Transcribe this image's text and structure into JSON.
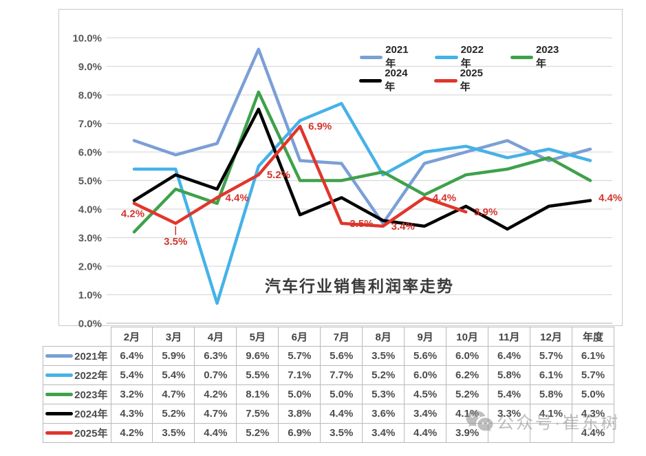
{
  "chart_data": {
    "type": "line",
    "title": "汽车行业销售利润率走势",
    "xlabel": "",
    "ylabel": "",
    "ylim": [
      0,
      10
    ],
    "ytick_step": 1,
    "y_tick_labels": [
      "10.0%",
      "9.0%",
      "8.0%",
      "7.0%",
      "6.0%",
      "5.0%",
      "4.0%",
      "3.0%",
      "2.0%",
      "1.0%",
      "0.0%"
    ],
    "grid": true,
    "legend_position": "top",
    "categories": [
      "2月",
      "3月",
      "4月",
      "5月",
      "6月",
      "7月",
      "8月",
      "9月",
      "10月",
      "11月",
      "12月",
      "年度"
    ],
    "series": [
      {
        "name": "2021年",
        "color": "#7B9FD6",
        "values": [
          6.4,
          5.9,
          6.3,
          9.6,
          5.7,
          5.6,
          3.5,
          5.6,
          6.0,
          6.4,
          5.7,
          6.1
        ]
      },
      {
        "name": "2022年",
        "color": "#45B2E8",
        "values": [
          5.4,
          5.4,
          0.7,
          5.5,
          7.1,
          7.7,
          5.2,
          6.0,
          6.2,
          5.8,
          6.1,
          5.7
        ]
      },
      {
        "name": "2023年",
        "color": "#3FA14B",
        "values": [
          3.2,
          4.7,
          4.2,
          8.1,
          5.0,
          5.0,
          5.3,
          4.5,
          5.2,
          5.4,
          5.8,
          5.0
        ]
      },
      {
        "name": "2024年",
        "color": "#000000",
        "values": [
          4.3,
          5.2,
          4.7,
          7.5,
          3.8,
          4.4,
          3.6,
          3.4,
          4.1,
          3.3,
          4.1,
          4.3
        ]
      },
      {
        "name": "2025年",
        "color": "#E0362C",
        "values": [
          4.2,
          3.5,
          4.4,
          5.2,
          6.9,
          3.5,
          3.4,
          4.4,
          3.9,
          null,
          null,
          4.4
        ]
      }
    ],
    "data_labels": [
      {
        "series": "2025年",
        "category": "2月",
        "text": "4.2%"
      },
      {
        "series": "2025年",
        "category": "3月",
        "text": "3.5%"
      },
      {
        "series": "2025年",
        "category": "4月",
        "text": "4.4%"
      },
      {
        "series": "2025年",
        "category": "5月",
        "text": "5.2%"
      },
      {
        "series": "2025年",
        "category": "6月",
        "text": "6.9%"
      },
      {
        "series": "2025年",
        "category": "7月",
        "text": "3.5%"
      },
      {
        "series": "2025年",
        "category": "8月",
        "text": "3.4%"
      },
      {
        "series": "2025年",
        "category": "9月",
        "text": "4.4%"
      },
      {
        "series": "2025年",
        "category": "10月",
        "text": "3.9%"
      },
      {
        "series": "2025年",
        "category": "年度",
        "text": "4.4%"
      }
    ],
    "data_label_color": "#D2342B"
  },
  "table": {
    "month_headers": [
      "2月",
      "3月",
      "4月",
      "5月",
      "6月",
      "7月",
      "8月",
      "9月",
      "10月",
      "11月",
      "12月",
      "年度"
    ],
    "rows": [
      {
        "label": "2021年",
        "color": "#7B9FD6",
        "cells": [
          "6.4%",
          "5.9%",
          "6.3%",
          "9.6%",
          "5.7%",
          "5.6%",
          "3.5%",
          "5.6%",
          "6.0%",
          "6.4%",
          "5.7%",
          "6.1%"
        ]
      },
      {
        "label": "2022年",
        "color": "#45B2E8",
        "cells": [
          "5.4%",
          "5.4%",
          "0.7%",
          "5.5%",
          "7.1%",
          "7.7%",
          "5.2%",
          "6.0%",
          "6.2%",
          "5.8%",
          "6.1%",
          "5.7%"
        ]
      },
      {
        "label": "2023年",
        "color": "#3FA14B",
        "cells": [
          "3.2%",
          "4.7%",
          "4.2%",
          "8.1%",
          "5.0%",
          "5.0%",
          "5.3%",
          "4.5%",
          "5.2%",
          "5.4%",
          "5.8%",
          "5.0%"
        ]
      },
      {
        "label": "2024年",
        "color": "#000000",
        "cells": [
          "4.3%",
          "5.2%",
          "4.7%",
          "7.5%",
          "3.8%",
          "4.4%",
          "3.6%",
          "3.4%",
          "4.1%",
          "3.3%",
          "4.1%",
          "4.3%"
        ]
      },
      {
        "label": "2025年",
        "color": "#E0362C",
        "cells": [
          "4.2%",
          "3.5%",
          "4.4%",
          "5.2%",
          "6.9%",
          "3.5%",
          "3.4%",
          "4.4%",
          "3.9%",
          "",
          "",
          "4.4%"
        ]
      }
    ]
  },
  "watermark": {
    "text": "公众号·崔东树"
  },
  "colors": {
    "gridline": "#D9D9D9",
    "axis_line": "#BFBFBF",
    "axis_text": "#595959",
    "table_border": "#B9B9B9",
    "title_text": "#3A3A3A"
  }
}
